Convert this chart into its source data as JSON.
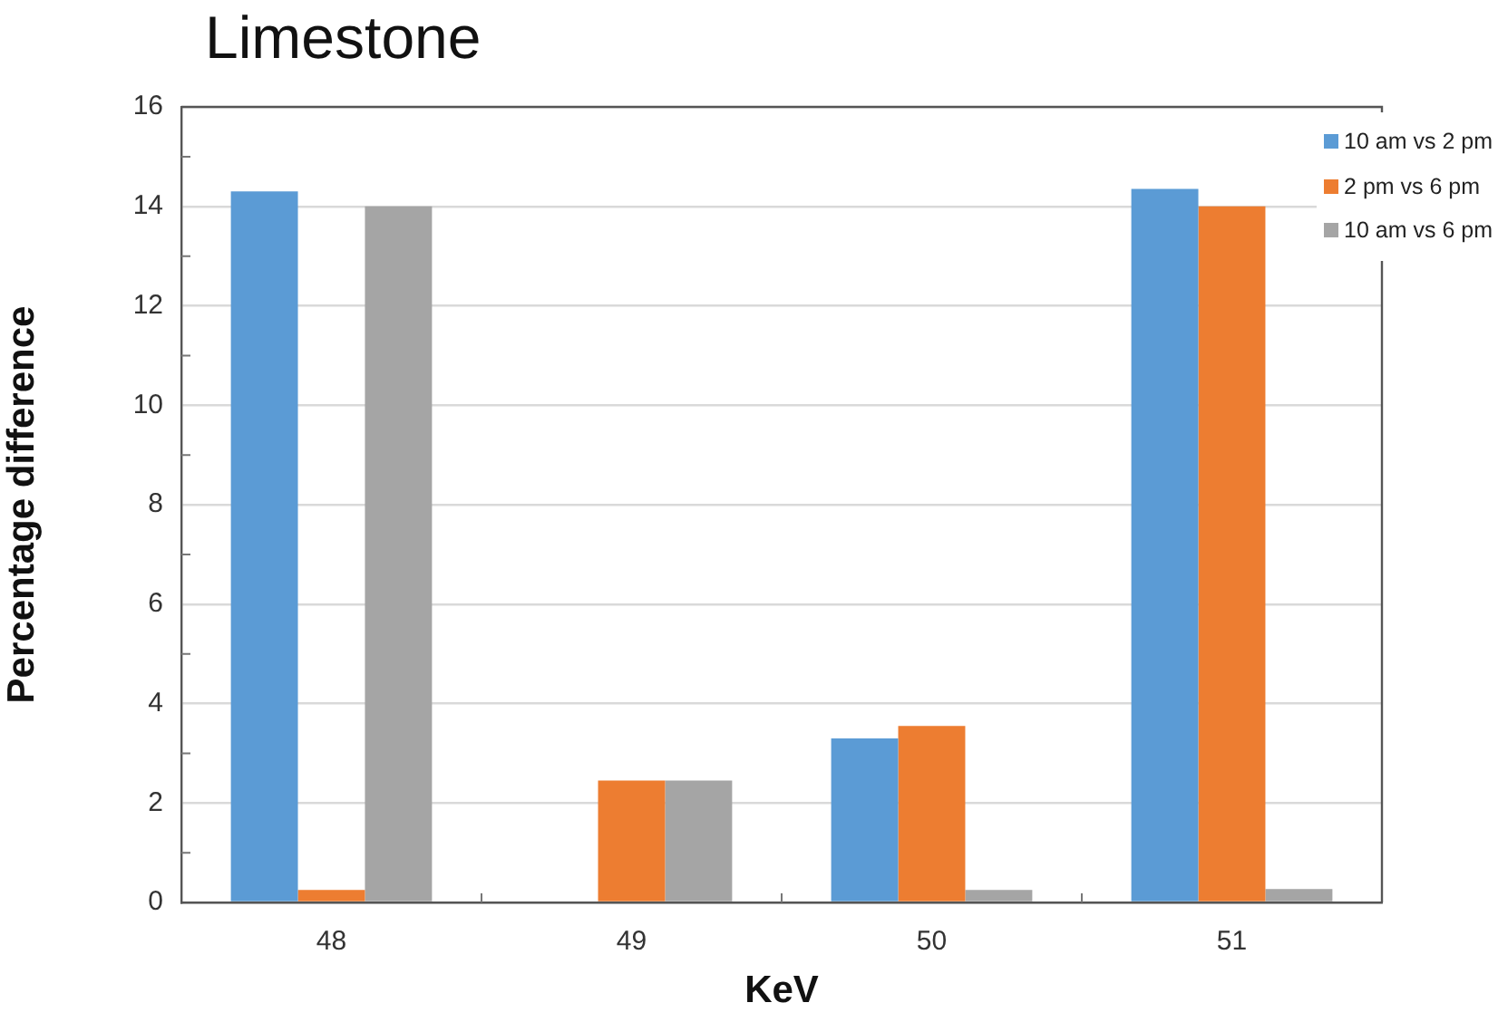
{
  "chart_data": {
    "type": "bar",
    "title": "Limestone",
    "xlabel": "KeV",
    "ylabel": "Percentage difference",
    "categories": [
      "48",
      "49",
      "50",
      "51"
    ],
    "series": [
      {
        "name": "10 am vs 2 pm",
        "color": "#5b9bd5",
        "values": [
          14.3,
          null,
          3.3,
          14.35
        ]
      },
      {
        "name": "2 pm vs 6 pm",
        "color": "#ed7d31",
        "values": [
          0.25,
          2.45,
          3.55,
          14.0
        ]
      },
      {
        "name": "10 am vs 6 pm",
        "color": "#a5a5a5",
        "values": [
          14.0,
          2.45,
          0.25,
          0.27
        ]
      }
    ],
    "ylim": [
      0,
      16
    ],
    "yticks": [
      0,
      {
        "value": 1,
        "label": null
      },
      2,
      {
        "value": 3,
        "label": null
      },
      4,
      {
        "value": 5,
        "label": null
      },
      6,
      {
        "value": 7,
        "label": null
      },
      8,
      {
        "value": 9,
        "label": null
      },
      10,
      {
        "value": 11,
        "label": null
      },
      12,
      {
        "value": 13,
        "label": null
      },
      14,
      {
        "value": 15,
        "label": null
      },
      16
    ],
    "grid": "y",
    "legend": "top right"
  }
}
